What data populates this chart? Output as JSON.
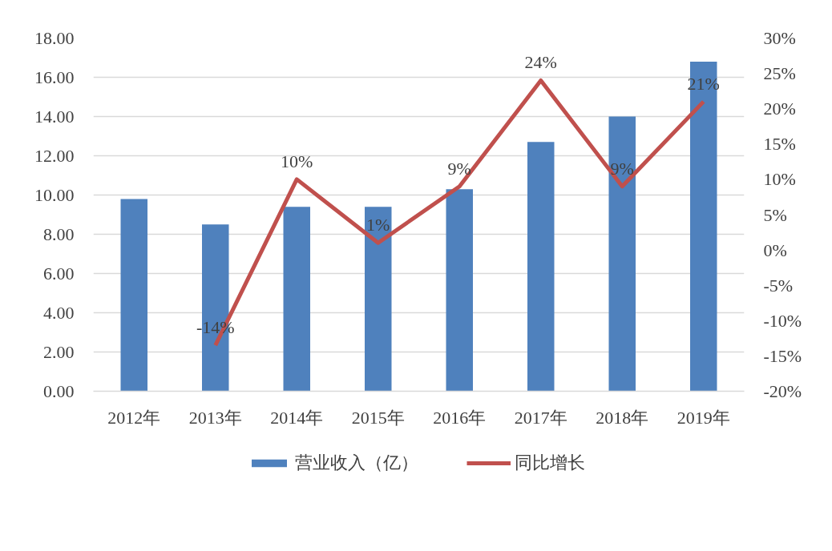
{
  "chart_data": {
    "type": "bar",
    "categories": [
      "2012年",
      "2013年",
      "2014年",
      "2015年",
      "2016年",
      "2017年",
      "2018年",
      "2019年"
    ],
    "series": [
      {
        "name": "营业收入（亿）",
        "color": "#4f81bd",
        "values": [
          9.8,
          8.5,
          9.4,
          9.4,
          10.3,
          12.7,
          14.0,
          16.8
        ]
      },
      {
        "name": "同比增长",
        "type": "line",
        "axis": "y2",
        "color": "#c0504d",
        "values": [
          null,
          -13.5,
          10,
          1,
          9,
          24,
          9,
          21
        ],
        "value_labels": [
          null,
          "-14%",
          "10%",
          "1%",
          "9%",
          "24%",
          "9%",
          "21%"
        ]
      }
    ],
    "ylim": [
      0,
      18
    ],
    "yticks": [
      {
        "value": 0,
        "label": "0.00"
      },
      {
        "value": 2,
        "label": "2.00"
      },
      {
        "value": 4,
        "label": "4.00"
      },
      {
        "value": 6,
        "label": "6.00"
      },
      {
        "value": 8,
        "label": "8.00"
      },
      {
        "value": 10,
        "label": "10.00"
      },
      {
        "value": 12,
        "label": "12.00"
      },
      {
        "value": 14,
        "label": "14.00"
      },
      {
        "value": 16,
        "label": "16.00"
      },
      {
        "value": 18,
        "label": "18.00"
      }
    ],
    "y2lim": [
      -20,
      30
    ],
    "y2ticks": [
      {
        "value": -20,
        "label": "-20%"
      },
      {
        "value": -15,
        "label": "-15%"
      },
      {
        "value": -10,
        "label": "-10%"
      },
      {
        "value": -5,
        "label": "-5%"
      },
      {
        "value": 0,
        "label": "0%"
      },
      {
        "value": 5,
        "label": "5%"
      },
      {
        "value": 10,
        "label": "10%"
      },
      {
        "value": 15,
        "label": "15%"
      },
      {
        "value": 20,
        "label": "20%"
      },
      {
        "value": 25,
        "label": "25%"
      },
      {
        "value": 30,
        "label": "30%"
      }
    ],
    "grid": "y",
    "legend": "bottom"
  }
}
